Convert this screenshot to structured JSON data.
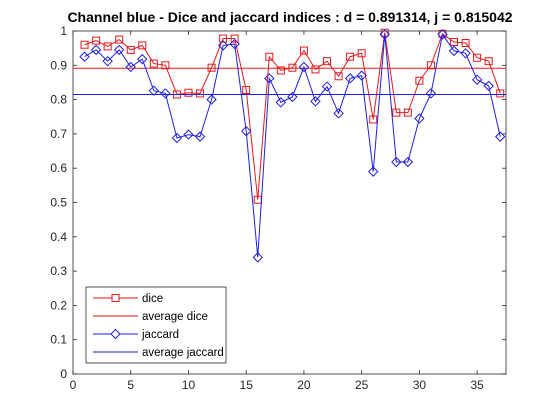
{
  "chart_data": {
    "type": "line",
    "title": "Channel blue - Dice and jaccard indices : d = 0.891314, j = 0.815042",
    "xlabel": "",
    "ylabel": "",
    "xlim": [
      0,
      37.5
    ],
    "ylim": [
      0,
      1
    ],
    "xticks": [
      0,
      5,
      10,
      15,
      20,
      25,
      30,
      35
    ],
    "yticks": [
      0,
      0.1,
      0.2,
      0.3,
      0.4,
      0.5,
      0.6,
      0.7,
      0.8,
      0.9,
      1
    ],
    "ytick_labels": [
      "0",
      "0.1",
      "0.2",
      "0.3",
      "0.4",
      "0.5",
      "0.6",
      "0.7",
      "0.8",
      "0.9",
      "1"
    ],
    "grid": false,
    "legend_position": "bottom-left",
    "x": [
      1,
      2,
      3,
      4,
      5,
      6,
      7,
      8,
      9,
      10,
      11,
      12,
      13,
      14,
      15,
      16,
      17,
      18,
      19,
      20,
      21,
      22,
      23,
      24,
      25,
      26,
      27,
      28,
      29,
      30,
      31,
      32,
      33,
      34,
      35,
      36,
      37
    ],
    "series": [
      {
        "name": "dice",
        "color": "#e31a1c",
        "marker": "square",
        "values": [
          0.96,
          0.972,
          0.955,
          0.975,
          0.945,
          0.958,
          0.905,
          0.9,
          0.815,
          0.82,
          0.818,
          0.893,
          0.978,
          0.978,
          0.828,
          0.508,
          0.925,
          0.885,
          0.893,
          0.943,
          0.888,
          0.912,
          0.868,
          0.925,
          0.935,
          0.742,
          0.995,
          0.762,
          0.762,
          0.855,
          0.9,
          0.992,
          0.968,
          0.965,
          0.922,
          0.912,
          0.818
        ]
      },
      {
        "name": "average dice",
        "color": "#e31a1c",
        "marker": "none",
        "constant": 0.891314
      },
      {
        "name": "jaccard",
        "color": "#1f1fe0",
        "marker": "diamond",
        "values": [
          0.925,
          0.945,
          0.912,
          0.945,
          0.895,
          0.918,
          0.826,
          0.818,
          0.688,
          0.698,
          0.692,
          0.8,
          0.958,
          0.962,
          0.708,
          0.34,
          0.862,
          0.792,
          0.808,
          0.895,
          0.795,
          0.838,
          0.76,
          0.862,
          0.87,
          0.59,
          0.99,
          0.618,
          0.618,
          0.745,
          0.818,
          0.99,
          0.942,
          0.935,
          0.858,
          0.84,
          0.692
        ]
      },
      {
        "name": "average jaccard",
        "color": "#1f1fe0",
        "marker": "none",
        "constant": 0.815042
      }
    ]
  }
}
